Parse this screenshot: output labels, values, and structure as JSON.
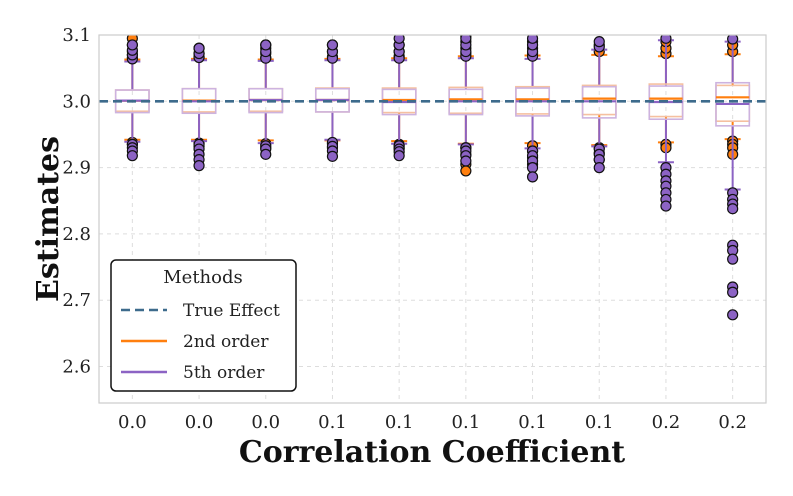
{
  "chart_data": {
    "type": "box",
    "xlabel": "Correlation Coefficient",
    "ylabel": "Estimates",
    "ylim": [
      2.545,
      3.1
    ],
    "yticks": [
      2.6,
      2.7,
      2.8,
      2.9,
      3.0,
      3.1
    ],
    "ytick_labels": [
      "2.6",
      "2.7",
      "2.8",
      "2.9",
      "3.0",
      "3.1"
    ],
    "categories": [
      "0.0",
      "0.0",
      "0.0",
      "0.1",
      "0.1",
      "0.1",
      "0.1",
      "0.1",
      "0.2",
      "0.2"
    ],
    "true_effect": 3.0,
    "grid": true,
    "legend": {
      "title": "Methods",
      "position": "lower-left",
      "entries": [
        "True Effect",
        "2nd order",
        "5th order"
      ]
    },
    "colors": {
      "true_effect": "#3d6b8c",
      "second_order": "#ff7f0e",
      "fifth_order": "#8c63c4",
      "second_order_box": "#f5c0a0",
      "fifth_order_box": "#cdb3df",
      "outlier_edge": "#111111",
      "grid": "#dddddd",
      "frame": "#cccccc"
    },
    "series": [
      {
        "name": "2nd order",
        "boxes": [
          {
            "q1": 2.985,
            "median": 3.001,
            "q3": 3.017,
            "wlow": 2.942,
            "whigh": 3.063,
            "outliers": [
              2.938,
              2.935,
              3.066,
              3.07,
              3.075,
              3.085,
              3.095
            ]
          },
          {
            "q1": 2.984,
            "median": 3.001,
            "q3": 3.019,
            "wlow": 2.942,
            "whigh": 3.064,
            "outliers": [
              2.937,
              2.932,
              3.067,
              3.072,
              3.08
            ]
          },
          {
            "q1": 2.985,
            "median": 3.002,
            "q3": 3.019,
            "wlow": 2.941,
            "whigh": 3.063,
            "outliers": [
              2.936,
              2.93,
              3.066,
              3.072,
              3.08,
              3.085
            ]
          },
          {
            "q1": 2.984,
            "median": 3.002,
            "q3": 3.02,
            "wlow": 2.941,
            "whigh": 3.064,
            "outliers": [
              2.936,
              2.93,
              3.067,
              3.075,
              3.085
            ]
          },
          {
            "q1": 2.983,
            "median": 3.002,
            "q3": 3.02,
            "wlow": 2.94,
            "whigh": 3.065,
            "outliers": [
              2.935,
              2.93,
              3.068,
              3.075,
              3.085
            ]
          },
          {
            "q1": 2.982,
            "median": 3.003,
            "q3": 3.021,
            "wlow": 2.936,
            "whigh": 3.068,
            "outliers": [
              2.93,
              2.92,
              2.905,
              2.895,
              3.072,
              3.08,
              3.09,
              3.098
            ]
          },
          {
            "q1": 2.981,
            "median": 3.003,
            "q3": 3.022,
            "wlow": 2.937,
            "whigh": 3.069,
            "outliers": [
              2.933,
              2.925,
              2.915,
              2.905,
              3.072,
              3.08,
              3.09
            ]
          },
          {
            "q1": 2.98,
            "median": 3.004,
            "q3": 3.024,
            "wlow": 2.934,
            "whigh": 3.07,
            "outliers": [
              2.93,
              2.922,
              2.912,
              3.075,
              3.085
            ]
          },
          {
            "q1": 2.977,
            "median": 3.004,
            "q3": 3.026,
            "wlow": 2.938,
            "whigh": 3.068,
            "outliers": [
              2.935,
              2.93,
              3.072,
              3.08,
              3.09
            ]
          },
          {
            "q1": 2.97,
            "median": 3.006,
            "q3": 3.024,
            "wlow": 2.943,
            "whigh": 3.071,
            "outliers": [
              2.94,
              2.935,
              2.93,
              2.92,
              3.075,
              3.085
            ]
          }
        ]
      },
      {
        "name": "5th order",
        "boxes": [
          {
            "q1": 2.983,
            "median": 3.001,
            "q3": 3.017,
            "wlow": 2.939,
            "whigh": 3.06,
            "outliers": [
              2.935,
              2.93,
              2.925,
              2.918,
              3.064,
              3.07,
              3.077,
              3.085
            ]
          },
          {
            "q1": 2.982,
            "median": 3.0,
            "q3": 3.019,
            "wlow": 2.94,
            "whigh": 3.062,
            "outliers": [
              2.935,
              2.928,
              2.92,
              2.912,
              2.903,
              3.066,
              3.072,
              3.08
            ]
          },
          {
            "q1": 2.983,
            "median": 3.002,
            "q3": 3.019,
            "wlow": 2.937,
            "whigh": 3.061,
            "outliers": [
              2.933,
              2.928,
              2.92,
              3.065,
              3.075,
              3.085
            ]
          },
          {
            "q1": 2.984,
            "median": 3.002,
            "q3": 3.019,
            "wlow": 2.942,
            "whigh": 3.062,
            "outliers": [
              2.938,
              2.932,
              2.925,
              2.917,
              3.065,
              3.075,
              3.085
            ]
          },
          {
            "q1": 2.98,
            "median": 2.999,
            "q3": 3.018,
            "wlow": 2.936,
            "whigh": 3.062,
            "outliers": [
              2.933,
              2.928,
              2.924,
              2.918,
              3.065,
              3.075,
              3.085,
              3.095
            ]
          },
          {
            "q1": 2.98,
            "median": 3.0,
            "q3": 3.018,
            "wlow": 2.935,
            "whigh": 3.065,
            "outliers": [
              2.93,
              2.925,
              2.918,
              2.91,
              3.068,
              3.075,
              3.085,
              3.095
            ]
          },
          {
            "q1": 2.978,
            "median": 3.0,
            "q3": 3.02,
            "wlow": 2.929,
            "whigh": 3.064,
            "outliers": [
              2.925,
              2.918,
              2.91,
              2.9,
              2.886,
              3.068,
              3.075,
              3.085,
              3.095
            ]
          },
          {
            "q1": 2.975,
            "median": 3.0,
            "q3": 3.022,
            "wlow": 2.932,
            "whigh": 3.078,
            "outliers": [
              2.928,
              2.92,
              2.912,
              2.9,
              3.082,
              3.09
            ]
          },
          {
            "q1": 2.973,
            "median": 2.999,
            "q3": 3.023,
            "wlow": 2.908,
            "whigh": 3.092,
            "outliers": [
              2.9,
              2.89,
              2.88,
              2.872,
              2.862,
              2.852,
              2.842,
              3.095
            ]
          },
          {
            "q1": 2.963,
            "median": 2.996,
            "q3": 3.028,
            "wlow": 2.867,
            "whigh": 3.09,
            "outliers": [
              2.862,
              2.852,
              2.845,
              2.838,
              2.783,
              2.775,
              2.762,
              2.72,
              2.712,
              2.678,
              3.094
            ]
          }
        ]
      }
    ]
  }
}
